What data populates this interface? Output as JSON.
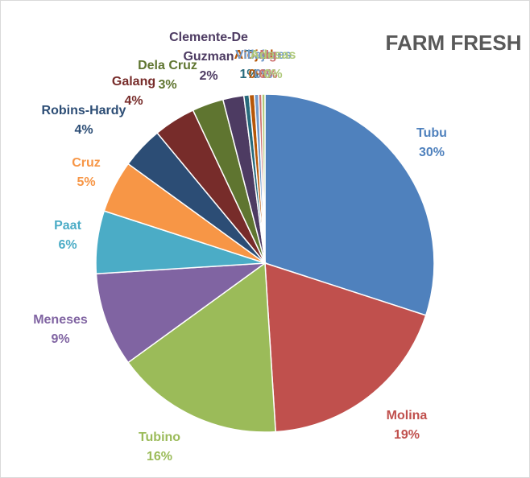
{
  "chart_data": {
    "type": "pie",
    "title": "FARM FRESH",
    "slices": [
      {
        "label": "Tubu",
        "value": 30,
        "pct_label": "30%",
        "color": "#4F81BD"
      },
      {
        "label": "Molina",
        "value": 19,
        "pct_label": "19%",
        "color": "#C0504D"
      },
      {
        "label": "Tubino",
        "value": 16,
        "pct_label": "16%",
        "color": "#9BBB59"
      },
      {
        "label": "Meneses",
        "value": 9,
        "pct_label": "9%",
        "color": "#8064A2"
      },
      {
        "label": "Paat",
        "value": 6,
        "pct_label": "6%",
        "color": "#4BACC6"
      },
      {
        "label": "Cruz",
        "value": 5,
        "pct_label": "5%",
        "color": "#F79646"
      },
      {
        "label": "Robins-Hardy",
        "value": 4,
        "pct_label": "4%",
        "color": "#2C4D75"
      },
      {
        "label": "Galang",
        "value": 4,
        "pct_label": "4%",
        "color": "#772C2A"
      },
      {
        "label": "Dela Cruz",
        "value": 3,
        "pct_label": "3%",
        "color": "#5F7530"
      },
      {
        "label": "Clemente-De Guzman",
        "value": 2,
        "pct_label": "2%",
        "color": "#4D3B62"
      },
      {
        "label": "T",
        "value": 0.5,
        "pct_label": "1%",
        "color": "#276A7C"
      },
      {
        "label": "Alojado",
        "value": 0.5,
        "pct_label": "0%",
        "color": "#B65708"
      },
      {
        "label": "Villajares",
        "value": 0.4,
        "pct_label": "0%",
        "color": "#729ACA"
      },
      {
        "label": "Ng",
        "value": 0.3,
        "pct_label": "0%",
        "color": "#CD7371"
      },
      {
        "label": "Adesas",
        "value": 0.3,
        "pct_label": "0%",
        "color": "#AFC97A"
      }
    ]
  }
}
